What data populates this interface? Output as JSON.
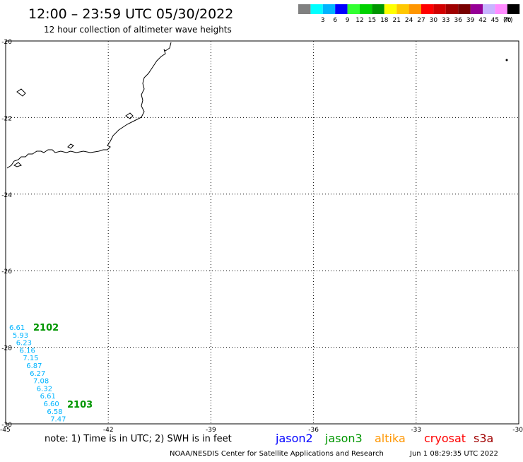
{
  "header": {
    "title": "12:00 – 23:59 UTC 05/30/2022",
    "subtitle": "12 hour collection of altimeter wave heights"
  },
  "legend": {
    "unit": "(ft)",
    "swatches": [
      {
        "label": "",
        "color": "#808080"
      },
      {
        "label": "3",
        "color": "#00ffff"
      },
      {
        "label": "6",
        "color": "#00b4ff"
      },
      {
        "label": "9",
        "color": "#0000ff"
      },
      {
        "label": "12",
        "color": "#32ff32"
      },
      {
        "label": "15",
        "color": "#00d200"
      },
      {
        "label": "18",
        "color": "#009600"
      },
      {
        "label": "21",
        "color": "#ffff00"
      },
      {
        "label": "24",
        "color": "#ffc800"
      },
      {
        "label": "27",
        "color": "#ff9600"
      },
      {
        "label": "30",
        "color": "#ff0000"
      },
      {
        "label": "33",
        "color": "#d20000"
      },
      {
        "label": "36",
        "color": "#a00000"
      },
      {
        "label": "39",
        "color": "#780000"
      },
      {
        "label": "42",
        "color": "#960096"
      },
      {
        "label": "45",
        "color": "#c8b4ff"
      },
      {
        "label": "70",
        "color": "#ff8cff"
      },
      {
        "label": "",
        "color": "#000000"
      }
    ]
  },
  "map": {
    "lon_range": [
      -45,
      -30
    ],
    "lat_range": [
      -30,
      -20
    ],
    "lon_ticks": [
      "-45",
      "-42",
      "-39",
      "-36",
      "-33",
      "-30"
    ],
    "lat_ticks": [
      "-20",
      "-22",
      "-24",
      "-26",
      "-28",
      "-30"
    ],
    "grid_style": "dotted",
    "satellite_tracks": [
      {
        "pass_id": "2102",
        "pass_id_color": "#009600",
        "value_color": "#00b4ff",
        "values": [
          "6.61",
          "5.93",
          "6.23",
          "6.16",
          "7.15",
          "6.87",
          "6.27",
          "7.08",
          "6.32",
          "6.61",
          "6.60",
          "6.58",
          "7.47"
        ]
      }
    ],
    "second_pass_id": "2103",
    "second_pass_color": "#009600"
  },
  "footer": {
    "note": "note:  1) Time is in UTC; 2) SWH is in feet",
    "satellites": [
      {
        "name": "jason2",
        "color": "#0000ff"
      },
      {
        "name": "jason3",
        "color": "#009600"
      },
      {
        "name": "altika",
        "color": "#ff9600"
      },
      {
        "name": "cryosat",
        "color": "#ff0000"
      },
      {
        "name": "s3a",
        "color": "#a00000"
      }
    ],
    "credit": "NOAA/NESDIS Center for Satellite Applications and Research",
    "timestamp": "Jun  1 08:29:35 UTC 2022"
  }
}
